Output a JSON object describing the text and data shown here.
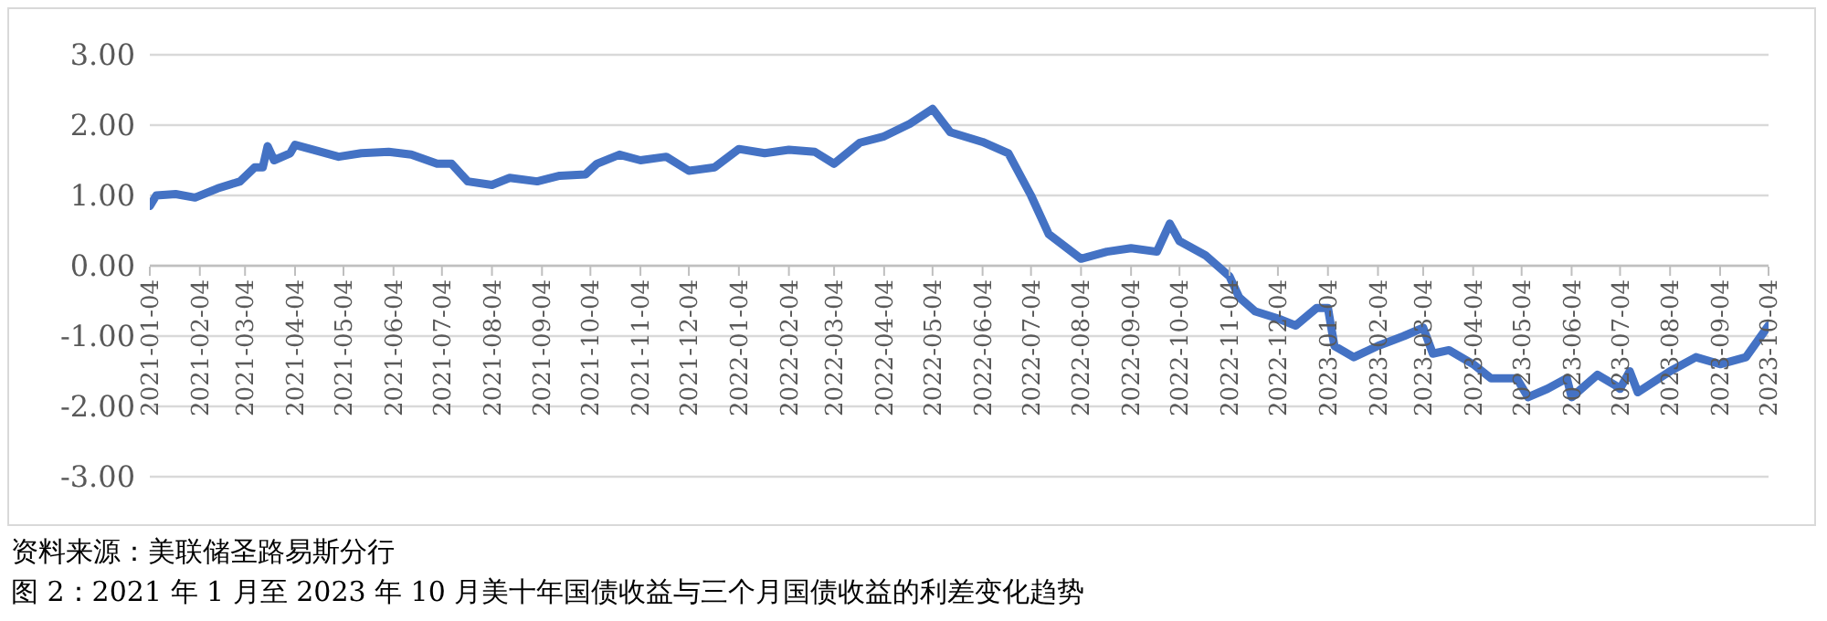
{
  "chart_data": {
    "type": "line",
    "x": [
      "2021-01-04",
      "2021-01-08",
      "2021-01-20",
      "2021-02-01",
      "2021-02-15",
      "2021-03-01",
      "2021-03-10",
      "2021-03-15",
      "2021-03-18",
      "2021-03-22",
      "2021-04-01",
      "2021-04-04",
      "2021-04-15",
      "2021-05-01",
      "2021-05-15",
      "2021-06-01",
      "2021-06-15",
      "2021-07-01",
      "2021-07-10",
      "2021-07-20",
      "2021-08-04",
      "2021-08-15",
      "2021-09-01",
      "2021-09-15",
      "2021-10-01",
      "2021-10-08",
      "2021-10-22",
      "2021-11-04",
      "2021-11-20",
      "2021-12-04",
      "2021-12-20",
      "2022-01-04",
      "2022-01-20",
      "2022-02-04",
      "2022-02-20",
      "2022-03-04",
      "2022-03-20",
      "2022-04-04",
      "2022-04-20",
      "2022-05-04",
      "2022-05-15",
      "2022-06-04",
      "2022-06-20",
      "2022-07-04",
      "2022-07-15",
      "2022-08-04",
      "2022-08-20",
      "2022-09-04",
      "2022-09-20",
      "2022-09-28",
      "2022-10-04",
      "2022-10-20",
      "2022-11-04",
      "2022-11-10",
      "2022-11-20",
      "2022-12-04",
      "2022-12-15",
      "2022-12-28",
      "2023-01-04",
      "2023-01-08",
      "2023-01-20",
      "2023-02-04",
      "2023-02-20",
      "2023-03-04",
      "2023-03-10",
      "2023-03-20",
      "2023-04-04",
      "2023-04-15",
      "2023-05-01",
      "2023-05-08",
      "2023-05-20",
      "2023-06-01",
      "2023-06-04",
      "2023-06-20",
      "2023-07-01",
      "2023-07-04",
      "2023-07-10",
      "2023-07-15",
      "2023-08-04",
      "2023-08-20",
      "2023-09-04",
      "2023-09-20",
      "2023-10-04"
    ],
    "series": [
      {
        "color": "#4472c4",
        "values": [
          0.85,
          1.0,
          1.02,
          0.97,
          1.1,
          1.2,
          1.4,
          1.4,
          1.7,
          1.5,
          1.6,
          1.72,
          1.65,
          1.55,
          1.6,
          1.62,
          1.58,
          1.45,
          1.45,
          1.2,
          1.15,
          1.25,
          1.2,
          1.28,
          1.3,
          1.45,
          1.58,
          1.5,
          1.55,
          1.35,
          1.4,
          1.66,
          1.6,
          1.65,
          1.62,
          1.45,
          1.75,
          1.84,
          2.02,
          2.23,
          1.9,
          1.76,
          1.6,
          1.0,
          0.45,
          0.1,
          0.2,
          0.25,
          0.2,
          0.6,
          0.35,
          0.15,
          -0.15,
          -0.45,
          -0.65,
          -0.75,
          -0.85,
          -0.6,
          -0.6,
          -1.14,
          -1.3,
          -1.14,
          -1.0,
          -0.88,
          -1.25,
          -1.2,
          -1.4,
          -1.6,
          -1.6,
          -1.87,
          -1.75,
          -1.6,
          -1.87,
          -1.55,
          -1.7,
          -1.75,
          -1.5,
          -1.8,
          -1.5,
          -1.3,
          -1.4,
          -1.3,
          -0.85
        ]
      }
    ],
    "xlim": [
      "2021-01-04",
      "2023-10-04"
    ],
    "xticks": [
      "2021-01-04",
      "2021-02-04",
      "2021-03-04",
      "2021-04-04",
      "2021-05-04",
      "2021-06-04",
      "2021-07-04",
      "2021-08-04",
      "2021-09-04",
      "2021-10-04",
      "2021-11-04",
      "2021-12-04",
      "2022-01-04",
      "2022-02-04",
      "2022-03-04",
      "2022-04-04",
      "2022-05-04",
      "2022-06-04",
      "2022-07-04",
      "2022-08-04",
      "2022-09-04",
      "2022-10-04",
      "2022-11-04",
      "2022-12-04",
      "2023-01-04",
      "2023-02-04",
      "2023-03-04",
      "2023-04-04",
      "2023-05-04",
      "2023-06-04",
      "2023-07-04",
      "2023-08-04",
      "2023-09-04",
      "2023-10-04"
    ],
    "ylim": [
      -3,
      3
    ],
    "yticks": [
      {
        "value": -3,
        "label": "-3.00"
      },
      {
        "value": -2,
        "label": "-2.00"
      },
      {
        "value": -1,
        "label": "-1.00"
      },
      {
        "value": 0,
        "label": "0.00"
      },
      {
        "value": 1,
        "label": "1.00"
      },
      {
        "value": 2,
        "label": "2.00"
      },
      {
        "value": 3,
        "label": "3.00"
      }
    ],
    "grid": "y",
    "marker": "none",
    "line_style": "solid",
    "annotations": [
      "资料来源：美联储圣路易斯分行",
      "图 2：2021 年 1 月至 2023 年 10 月美十年国债收益与三个月国债收益的利差变化趋势"
    ]
  }
}
